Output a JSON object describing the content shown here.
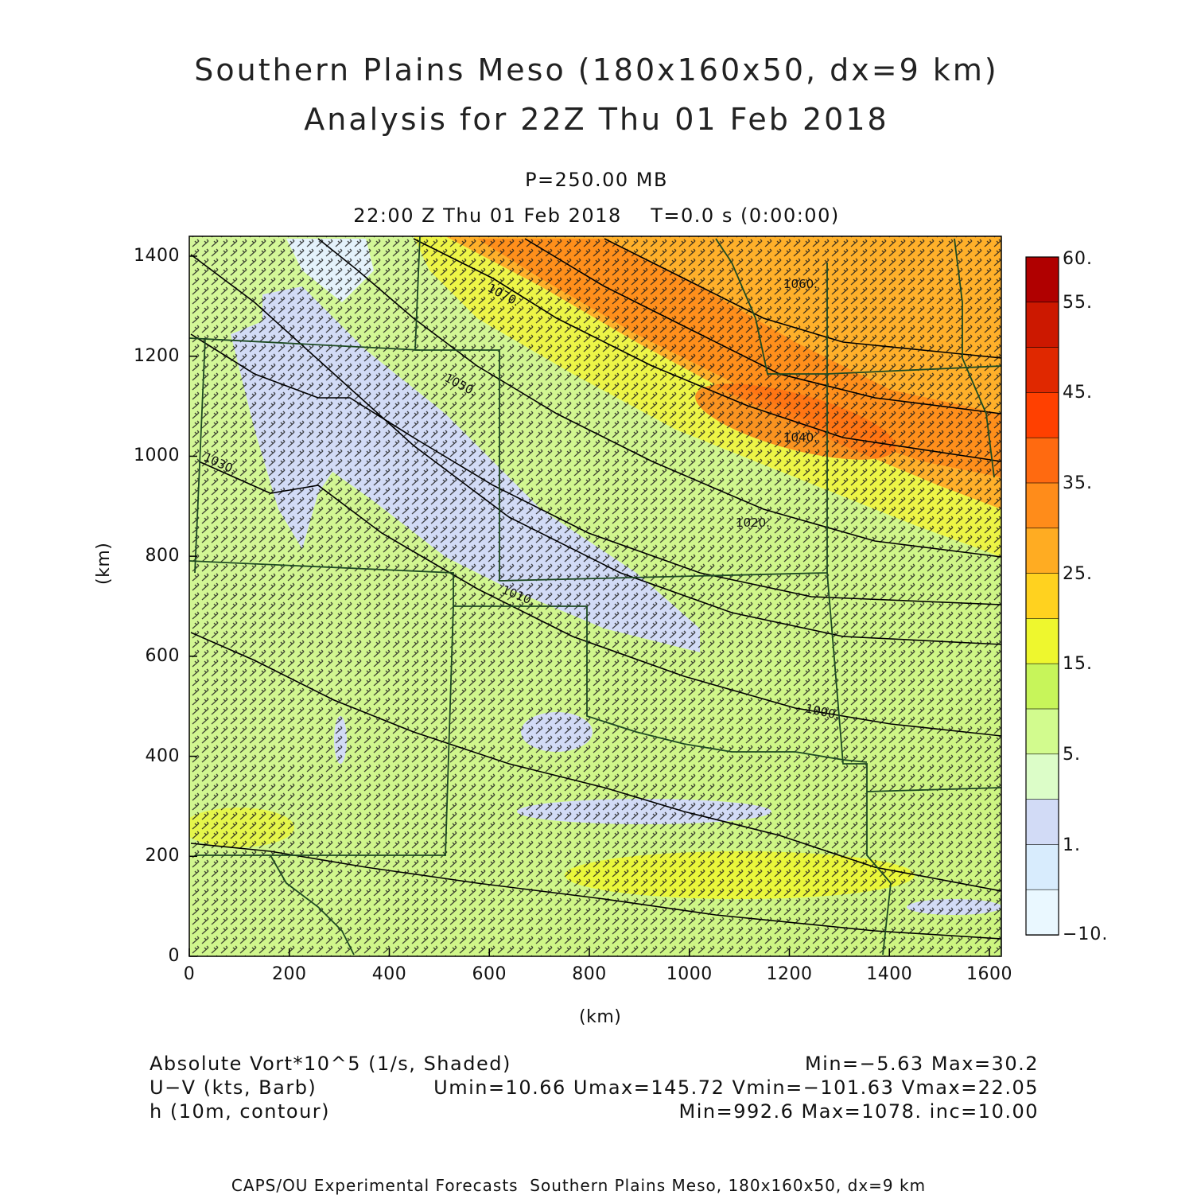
{
  "title_line1": "Southern Plains Meso (180x160x50, dx=9 km)",
  "title_line2": "Analysis for 22Z Thu 01 Feb 2018",
  "pressure_level": "P=250.00 MB",
  "valid_time": "22:00 Z Thu 01 Feb 2018    T=0.0 s (0:00:00)",
  "x_axis": {
    "label": "(km)",
    "ticks": [
      "0",
      "200",
      "400",
      "600",
      "800",
      "1000",
      "1200",
      "1400",
      "1600"
    ]
  },
  "y_axis": {
    "label": "(km)",
    "ticks": [
      "0",
      "200",
      "400",
      "600",
      "800",
      "1000",
      "1200",
      "1400"
    ]
  },
  "colorbar": {
    "labels": [
      "60.",
      "55.",
      "45.",
      "35.",
      "25.",
      "15.",
      "5.",
      "1.",
      "−10."
    ],
    "colors": [
      "#b00000",
      "#cc1800",
      "#e02800",
      "#ff4000",
      "#ff6a10",
      "#ff8c1a",
      "#ffac22",
      "#ffd21f",
      "#eef72e",
      "#c7f55a",
      "#d2fb8e",
      "#dcfdc8",
      "#d2dbf6",
      "#d8ecfd",
      "#eaf8ff"
    ]
  },
  "legend": {
    "row1_left": "Absolute Vort*10^5 (1/s, Shaded)",
    "row1_right": "Min=−5.63 Max=30.2",
    "row2_left": "U−V (kts, Barb)",
    "row2_right": "Umin=10.66 Umax=145.72 Vmin=−101.63 Vmax=22.05",
    "row3_left": "h (10m, contour)",
    "row3_right": "Min=992.6 Max=1078. inc=10.00"
  },
  "footer": "CAPS/OU Experimental Forecasts  Southern Plains Meso, 180x160x50, dx=9 km",
  "contour_labels": [
    "1070.",
    "1060.",
    "1050.",
    "1040.",
    "1030.",
    "1020.",
    "1010.",
    "1000."
  ]
}
